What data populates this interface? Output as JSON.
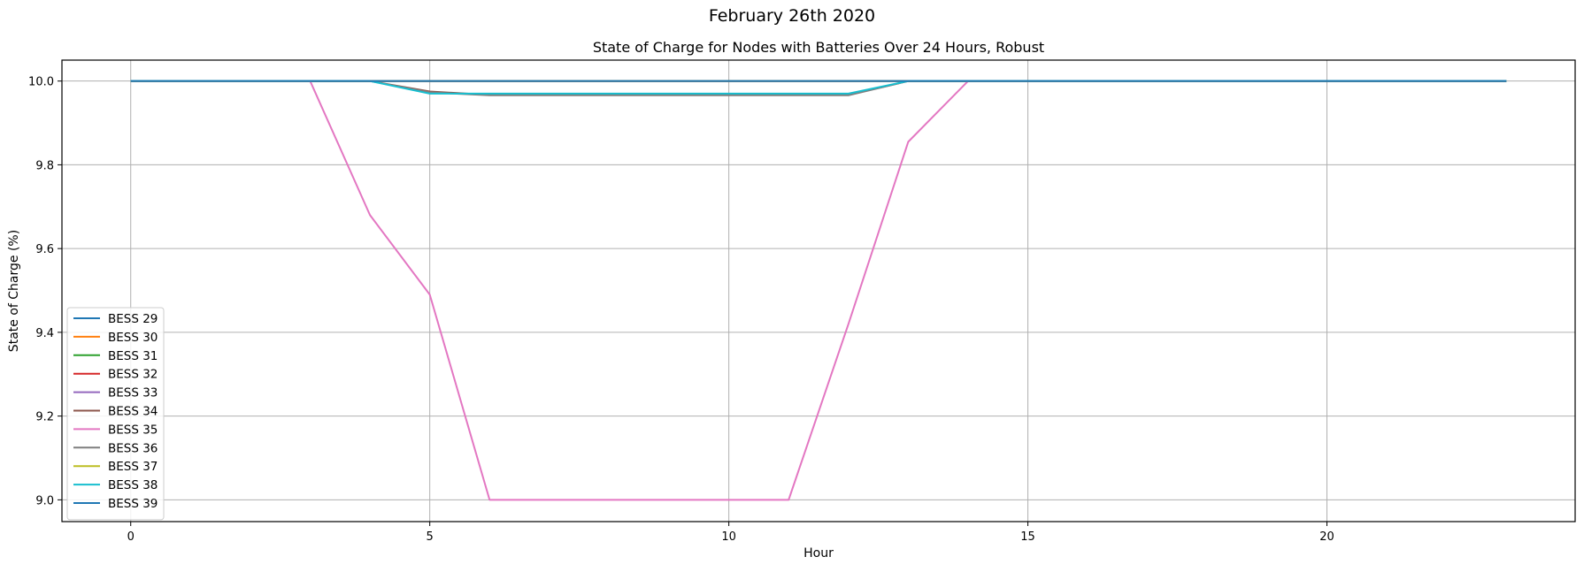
{
  "chart_data": {
    "type": "line",
    "suptitle": "February 26th 2020",
    "title": "State of Charge for Nodes with Batteries Over 24 Hours, Robust",
    "xlabel": "Hour",
    "ylabel": "State of Charge (%)",
    "xlim": [
      -1.15,
      24.15
    ],
    "ylim": [
      8.948,
      10.05
    ],
    "xticks": [
      0,
      5,
      10,
      15,
      20
    ],
    "yticks": [
      9.0,
      9.2,
      9.4,
      9.6,
      9.8,
      10.0
    ],
    "ytick_labels": [
      "9.0",
      "9.2",
      "9.4",
      "9.6",
      "9.8",
      "10.0"
    ],
    "grid": true,
    "legend_position": "lower-left",
    "x": [
      0,
      1,
      2,
      3,
      4,
      5,
      6,
      7,
      8,
      9,
      10,
      11,
      12,
      13,
      14,
      15,
      16,
      17,
      18,
      19,
      20,
      21,
      22,
      23
    ],
    "series": [
      {
        "name": "BESS 29",
        "color": "#1f77b4",
        "values": [
          10,
          10,
          10,
          10,
          10,
          10,
          10,
          10,
          10,
          10,
          10,
          10,
          10,
          10,
          10,
          10,
          10,
          10,
          10,
          10,
          10,
          10,
          10,
          10
        ]
      },
      {
        "name": "BESS 30",
        "color": "#ff7f0e",
        "values": [
          10,
          10,
          10,
          10,
          10,
          10,
          10,
          10,
          10,
          10,
          10,
          10,
          10,
          10,
          10,
          10,
          10,
          10,
          10,
          10,
          10,
          10,
          10,
          10
        ]
      },
      {
        "name": "BESS 31",
        "color": "#2ca02c",
        "values": [
          10,
          10,
          10,
          10,
          10,
          10,
          10,
          10,
          10,
          10,
          10,
          10,
          10,
          10,
          10,
          10,
          10,
          10,
          10,
          10,
          10,
          10,
          10,
          10
        ]
      },
      {
        "name": "BESS 32",
        "color": "#d62728",
        "values": [
          10,
          10,
          10,
          10,
          10,
          10,
          10,
          10,
          10,
          10,
          10,
          10,
          10,
          10,
          10,
          10,
          10,
          10,
          10,
          10,
          10,
          10,
          10,
          10
        ]
      },
      {
        "name": "BESS 33",
        "color": "#9467bd",
        "values": [
          10,
          10,
          10,
          10,
          10,
          10,
          10,
          10,
          10,
          10,
          10,
          10,
          10,
          10,
          10,
          10,
          10,
          10,
          10,
          10,
          10,
          10,
          10,
          10
        ]
      },
      {
        "name": "BESS 34",
        "color": "#8c564b",
        "values": [
          10,
          10,
          10,
          10,
          10,
          9.975,
          9.967,
          9.967,
          9.967,
          9.967,
          9.967,
          9.967,
          9.967,
          10,
          10,
          10,
          10,
          10,
          10,
          10,
          10,
          10,
          10,
          10
        ]
      },
      {
        "name": "BESS 35",
        "color": "#e377c2",
        "values": [
          10,
          10,
          10,
          10,
          9.68,
          9.49,
          9.0,
          9.0,
          9.0,
          9.0,
          9.0,
          9.0,
          9.42,
          9.855,
          10,
          10,
          10,
          10,
          10,
          10,
          10,
          10,
          10,
          10
        ]
      },
      {
        "name": "BESS 36",
        "color": "#7f7f7f",
        "values": [
          10,
          10,
          10,
          10,
          10,
          9.973,
          9.966,
          9.966,
          9.966,
          9.966,
          9.966,
          9.966,
          9.966,
          10,
          10,
          10,
          10,
          10,
          10,
          10,
          10,
          10,
          10,
          10
        ]
      },
      {
        "name": "BESS 37",
        "color": "#bcbd22",
        "values": [
          10,
          10,
          10,
          10,
          10,
          10,
          10,
          10,
          10,
          10,
          10,
          10,
          10,
          10,
          10,
          10,
          10,
          10,
          10,
          10,
          10,
          10,
          10,
          10
        ]
      },
      {
        "name": "BESS 38",
        "color": "#17becf",
        "values": [
          10,
          10,
          10,
          10,
          10,
          9.97,
          9.97,
          9.97,
          9.97,
          9.97,
          9.97,
          9.97,
          9.97,
          10,
          10,
          10,
          10,
          10,
          10,
          10,
          10,
          10,
          10,
          10
        ]
      },
      {
        "name": "BESS 39",
        "color": "#1f77b4",
        "values": [
          10,
          10,
          10,
          10,
          10,
          10,
          10,
          10,
          10,
          10,
          10,
          10,
          10,
          10,
          10,
          10,
          10,
          10,
          10,
          10,
          10,
          10,
          10,
          10
        ]
      }
    ]
  }
}
